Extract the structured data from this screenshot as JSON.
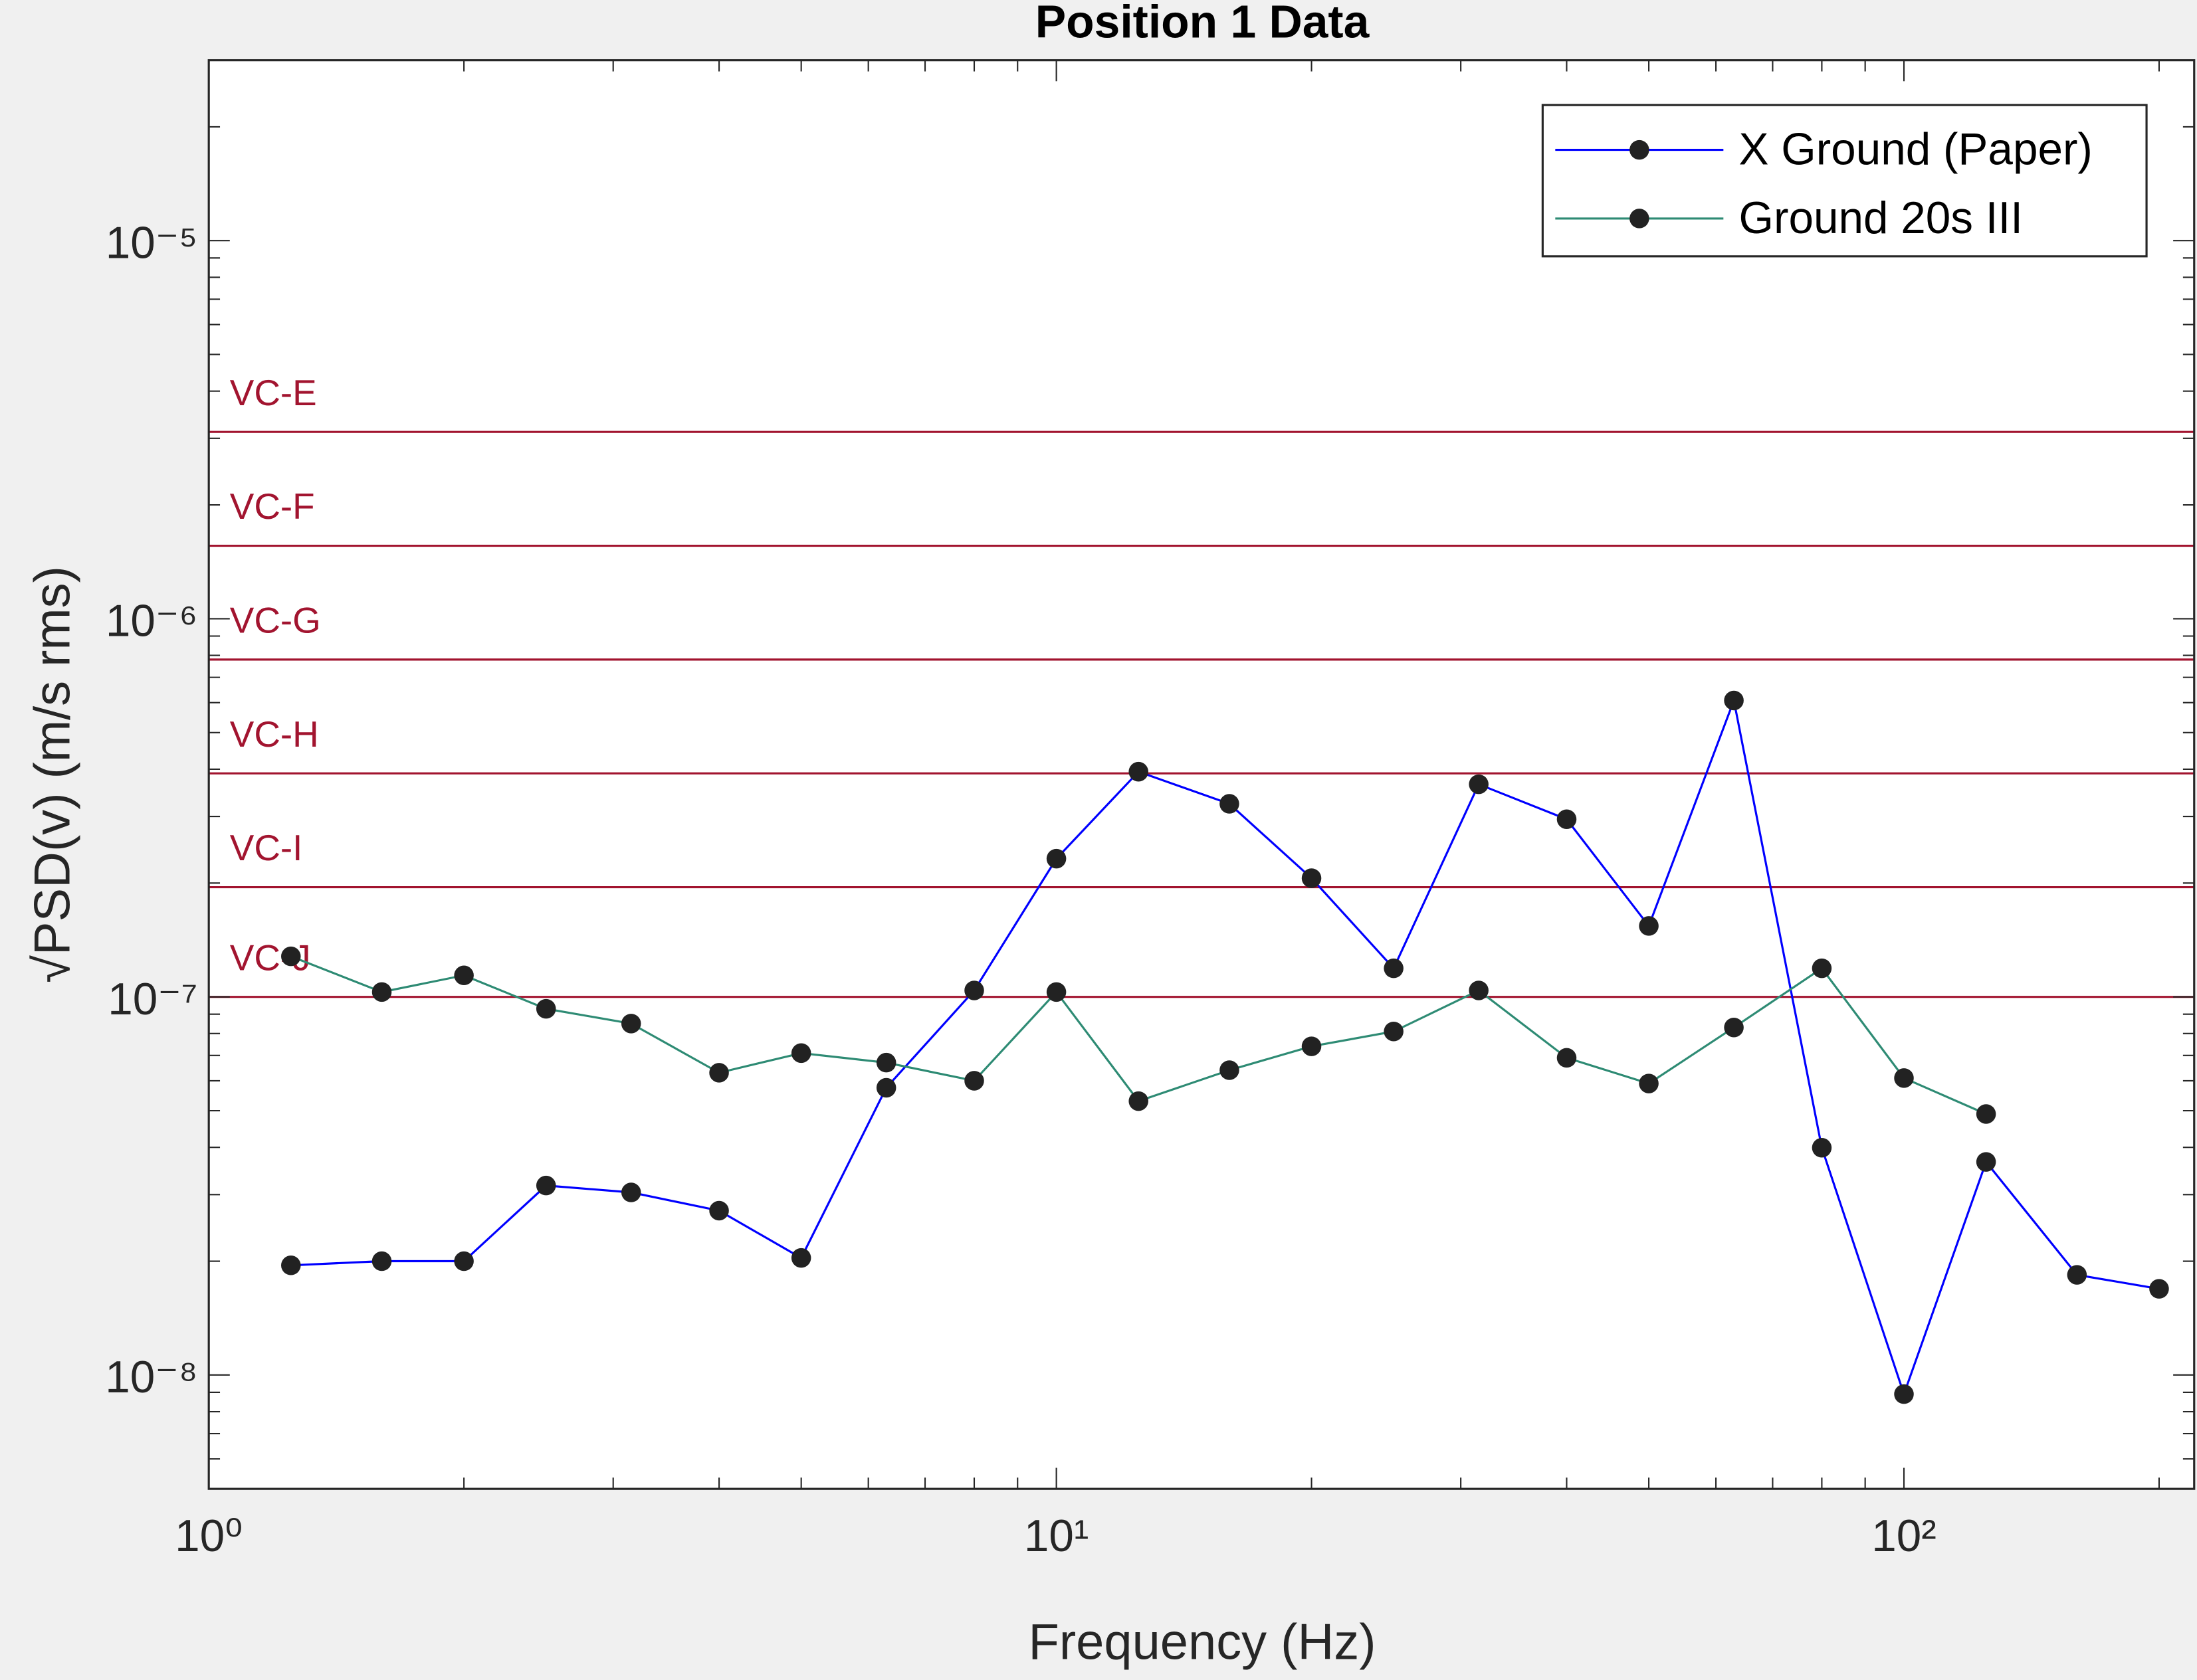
{
  "chart_data": {
    "type": "line",
    "title": "Position 1 Data",
    "xlabel": "Frequency (Hz)",
    "ylabel": "√PSD(v) (m/s rms)",
    "xscale": "log",
    "yscale": "log",
    "x": [
      1.25,
      1.6,
      2,
      2.5,
      3.15,
      4,
      5,
      6.3,
      8,
      10,
      12.5,
      16,
      20,
      25,
      31.5,
      40,
      50,
      63,
      80,
      100,
      125,
      160,
      200
    ],
    "series": [
      {
        "name": "X Ground (Paper)",
        "color": "#0000ff",
        "marker_color": "#222222",
        "values": [
          1.95e-08,
          2e-08,
          2e-08,
          3.17e-08,
          3.04e-08,
          2.72e-08,
          2.04e-08,
          5.75e-08,
          1.04e-07,
          2.32e-07,
          3.94e-07,
          3.24e-07,
          2.06e-07,
          1.19e-07,
          3.65e-07,
          2.95e-07,
          1.54e-07,
          6.08e-07,
          3.99e-08,
          8.9e-09,
          3.66e-08,
          1.84e-08,
          1.69e-08
        ]
      },
      {
        "name": "Ground 20s III",
        "color": "#2e8b74",
        "marker_color": "#222222",
        "values": [
          1.28e-07,
          1.03e-07,
          1.14e-07,
          9.3e-08,
          8.5e-08,
          6.3e-08,
          7.1e-08,
          6.7e-08,
          6e-08,
          1.03e-07,
          5.3e-08,
          6.4e-08,
          7.4e-08,
          8.1e-08,
          1.04e-07,
          6.9e-08,
          5.9e-08,
          8.3e-08,
          1.19e-07,
          6.1e-08,
          4.9e-08,
          null,
          null
        ]
      }
    ],
    "reference_lines": [
      {
        "label": "VC-E",
        "value": 3.12e-06
      },
      {
        "label": "VC-F",
        "value": 1.56e-06
      },
      {
        "label": "VC-G",
        "value": 7.8e-07
      },
      {
        "label": "VC-H",
        "value": 3.9e-07
      },
      {
        "label": "VC-I",
        "value": 1.95e-07
      },
      {
        "label": "VC-J",
        "value": 1e-07
      }
    ],
    "reference_color": "#a2142f",
    "xlim": [
      1,
      220
    ],
    "ylim": [
      5e-09,
      3e-05
    ],
    "xticks": [
      {
        "value": 1,
        "label": "10⁰"
      },
      {
        "value": 10,
        "label": "10¹"
      },
      {
        "value": 100,
        "label": "10²"
      }
    ],
    "yticks": [
      {
        "value": 1e-08,
        "label": "10⁻⁸"
      },
      {
        "value": 1e-07,
        "label": "10⁻⁷"
      },
      {
        "value": 1e-06,
        "label": "10⁻⁶"
      },
      {
        "value": 1e-05,
        "label": "10⁻⁵"
      }
    ],
    "legend": "upper right",
    "grid": false
  }
}
